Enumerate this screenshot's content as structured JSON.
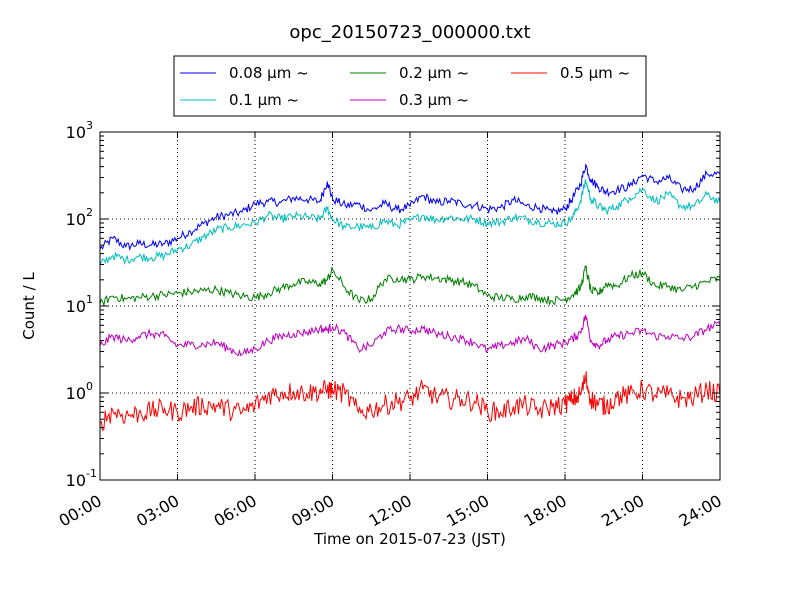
{
  "chart_data": {
    "type": "line",
    "title": "opc_20150723_000000.txt",
    "xlabel": "Time on 2015-07-23 (JST)",
    "ylabel": "Count / L",
    "x_ticks": [
      "00:00",
      "03:00",
      "06:00",
      "09:00",
      "12:00",
      "15:00",
      "18:00",
      "21:00",
      "24:00"
    ],
    "y_ticks": [
      "10",
      "10",
      "10",
      "10",
      "10"
    ],
    "y_tick_exponents": [
      "-1",
      "0",
      "1",
      "2",
      "3"
    ],
    "y_scale": "log",
    "xlim_hours": [
      0,
      24
    ],
    "ylim": [
      0.1,
      1000
    ],
    "grid": true,
    "legend_position": "top-center",
    "x_hours": [
      0,
      0.5,
      1,
      1.5,
      2,
      2.5,
      3,
      3.5,
      4,
      4.5,
      5,
      5.5,
      6,
      6.5,
      7,
      7.5,
      8,
      8.5,
      8.8,
      9,
      9.5,
      10,
      10.5,
      11,
      11.5,
      12,
      12.5,
      13,
      13.5,
      14,
      14.5,
      15,
      15.5,
      16,
      16.5,
      17,
      17.5,
      18,
      18.3,
      18.6,
      18.8,
      19,
      19.3,
      19.6,
      20,
      20.5,
      21,
      21.5,
      22,
      22.5,
      23,
      23.5,
      24
    ],
    "series": [
      {
        "name": "0.08 μm ~",
        "color": "#0000ff",
        "values": [
          45,
          60,
          48,
          52,
          50,
          52,
          60,
          72,
          88,
          105,
          112,
          120,
          150,
          158,
          155,
          175,
          168,
          158,
          270,
          170,
          142,
          148,
          125,
          150,
          128,
          140,
          185,
          152,
          162,
          150,
          145,
          130,
          135,
          165,
          142,
          135,
          118,
          130,
          175,
          250,
          420,
          280,
          232,
          205,
          215,
          238,
          320,
          268,
          295,
          220,
          225,
          330,
          330
        ]
      },
      {
        "name": "0.1 μm ~",
        "color": "#00bfbf",
        "values": [
          30,
          38,
          34,
          37,
          36,
          38,
          45,
          50,
          62,
          75,
          80,
          85,
          90,
          110,
          100,
          108,
          105,
          100,
          132,
          100,
          80,
          82,
          78,
          95,
          85,
          95,
          110,
          98,
          105,
          100,
          100,
          90,
          92,
          105,
          100,
          92,
          88,
          90,
          105,
          160,
          280,
          170,
          140,
          125,
          140,
          175,
          220,
          160,
          190,
          140,
          140,
          190,
          155
        ]
      },
      {
        "name": "0.2 μm ~",
        "color": "#008000",
        "values": [
          10.5,
          13,
          12,
          12.5,
          13,
          13.5,
          14,
          14.5,
          15,
          15.5,
          14,
          13,
          12.5,
          14,
          16,
          18,
          19,
          18,
          20,
          26,
          16,
          11.5,
          12,
          20,
          21,
          20,
          22,
          21,
          20,
          19,
          17,
          13,
          12.5,
          12,
          13,
          12.5,
          11.5,
          12,
          13.5,
          16,
          28,
          15,
          14,
          18,
          17,
          22,
          24,
          17,
          17,
          15,
          17,
          19,
          21
        ]
      },
      {
        "name": "0.3 μm ~",
        "color": "#bf00bf",
        "values": [
          3.5,
          4.5,
          4,
          4.5,
          4.8,
          4.5,
          3.5,
          3.6,
          3.6,
          3.8,
          3.2,
          2.8,
          3.2,
          4,
          4.5,
          4.8,
          5,
          5.5,
          5.3,
          5.8,
          4.8,
          3.2,
          3.5,
          5,
          5.5,
          5.2,
          5.5,
          4.8,
          4.5,
          4.2,
          3.8,
          3.1,
          3.5,
          3.8,
          4.2,
          3.2,
          3.5,
          3.8,
          4.2,
          5,
          7.8,
          4,
          3.5,
          4,
          4.5,
          4.8,
          5.2,
          4.5,
          4.5,
          4.2,
          4.5,
          5.5,
          6.2
        ]
      },
      {
        "name": "0.5 μm ~",
        "color": "#ff0000",
        "values": [
          0.45,
          0.62,
          0.55,
          0.58,
          0.62,
          0.66,
          0.6,
          0.68,
          0.72,
          0.72,
          0.64,
          0.6,
          0.72,
          0.95,
          1.0,
          1.05,
          1.0,
          1.05,
          1.1,
          1.08,
          0.98,
          0.6,
          0.65,
          0.72,
          0.8,
          0.85,
          1.1,
          0.9,
          0.85,
          0.85,
          0.8,
          0.62,
          0.6,
          0.7,
          0.72,
          0.62,
          0.7,
          0.75,
          0.85,
          0.95,
          1.5,
          0.85,
          0.75,
          0.7,
          0.9,
          0.95,
          1.1,
          0.95,
          0.95,
          0.85,
          0.9,
          1.1,
          0.95
        ]
      }
    ]
  }
}
